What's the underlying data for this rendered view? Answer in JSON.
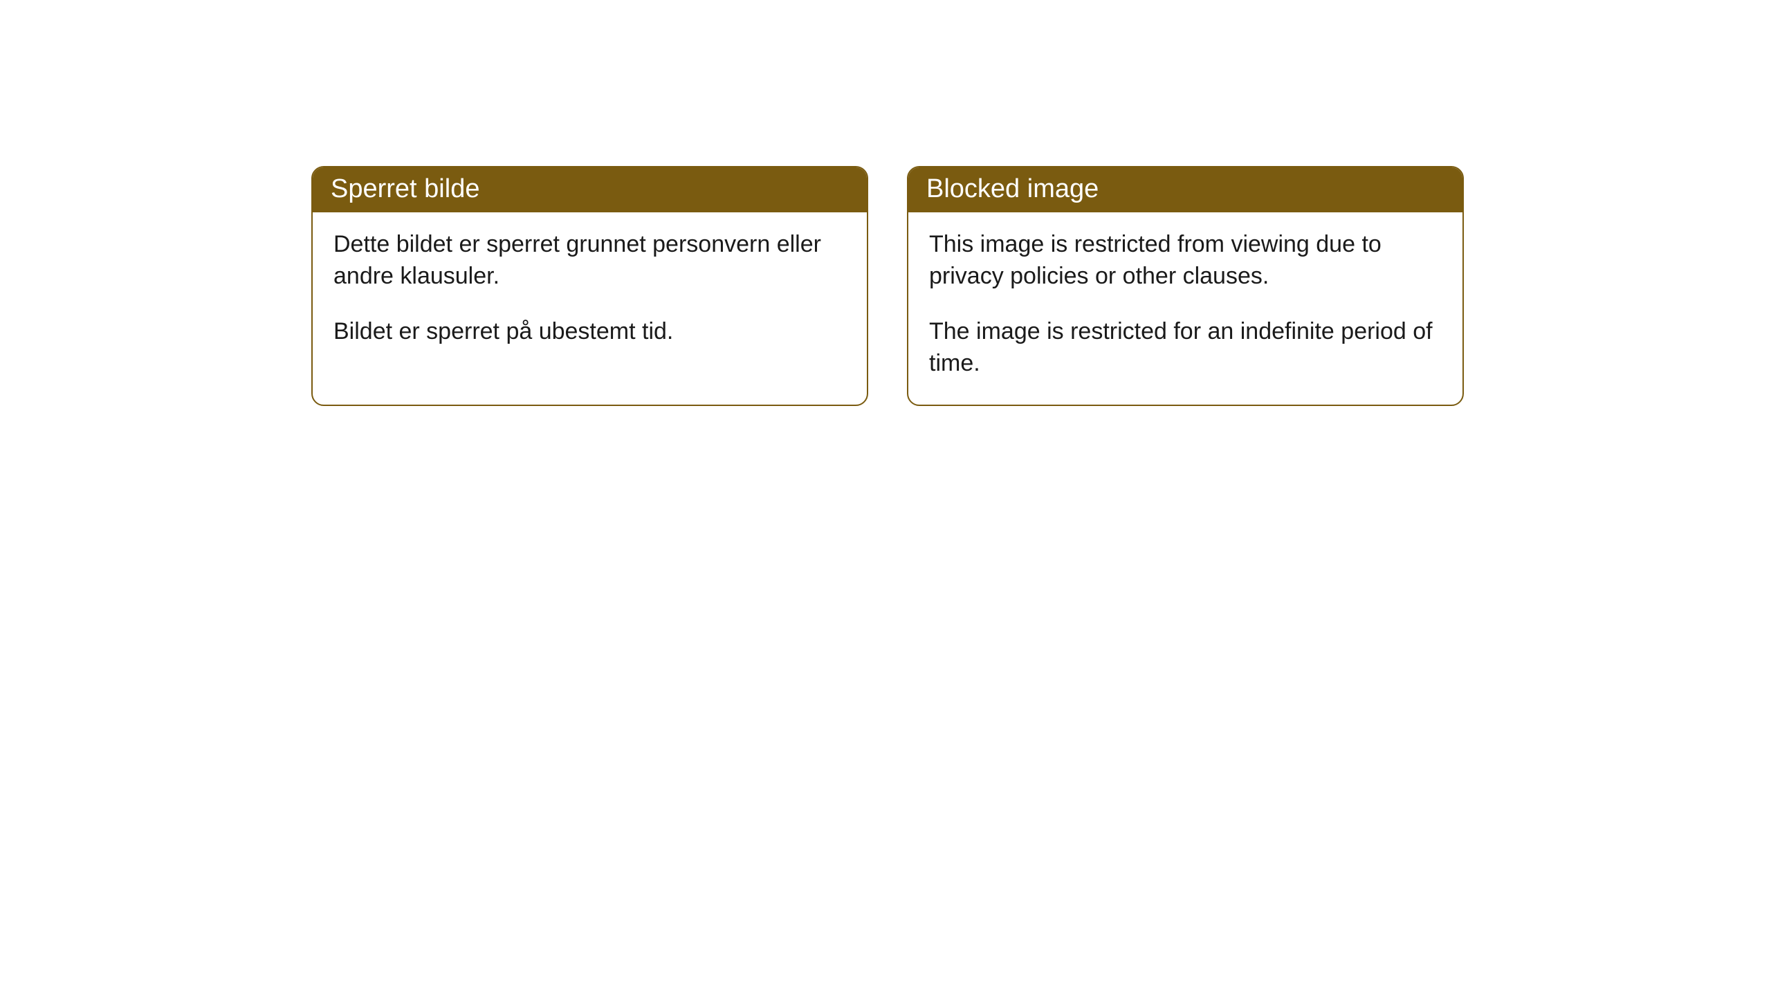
{
  "cards": [
    {
      "title": "Sperret bilde",
      "paragraph1": "Dette bildet er sperret grunnet personvern eller andre klausuler.",
      "paragraph2": "Bildet er sperret på ubestemt tid."
    },
    {
      "title": "Blocked image",
      "paragraph1": "This image is restricted from viewing due to privacy policies or other clauses.",
      "paragraph2": "The image is restricted for an indefinite period of time."
    }
  ],
  "style": {
    "header_bg_color": "#7a5b10",
    "header_text_color": "#ffffff",
    "border_color": "#7a5b10",
    "body_bg_color": "#ffffff",
    "body_text_color": "#1a1a1a",
    "border_radius": 18,
    "header_fontsize": 38,
    "body_fontsize": 34
  }
}
